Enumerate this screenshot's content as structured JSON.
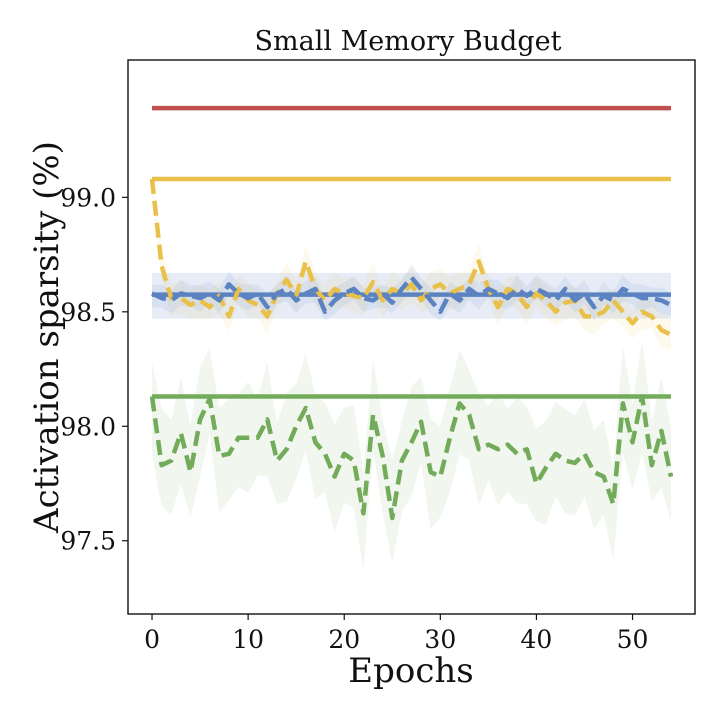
{
  "chart_data": {
    "type": "line",
    "title": "Small Memory Budget",
    "xlabel": "Epochs",
    "ylabel": "Activation sparsity (%)",
    "xlim": [
      -2.5,
      56.5
    ],
    "ylim": [
      97.18,
      99.6
    ],
    "xticks": [
      0,
      10,
      20,
      30,
      40,
      50
    ],
    "yticks": [
      97.5,
      98.0,
      98.5,
      99.0
    ],
    "ytick_labels": [
      "97.5",
      "98.0",
      "98.5",
      "99.0"
    ],
    "grid": false,
    "x": [
      0,
      1,
      2,
      3,
      4,
      5,
      6,
      7,
      8,
      9,
      10,
      11,
      12,
      13,
      14,
      15,
      16,
      17,
      18,
      19,
      20,
      21,
      22,
      23,
      24,
      25,
      26,
      27,
      28,
      29,
      30,
      31,
      32,
      33,
      34,
      35,
      36,
      37,
      38,
      39,
      40,
      41,
      42,
      43,
      44,
      45,
      46,
      47,
      48,
      49,
      50,
      51,
      52,
      53,
      54
    ],
    "series": [
      {
        "name": "red-constant",
        "color": "#c0504d",
        "style": "solid",
        "values_const": 99.39,
        "x_range": [
          0,
          54
        ]
      },
      {
        "name": "yellow-constant",
        "color": "#e8c04a",
        "style": "solid",
        "values_const": 99.08,
        "x_range": [
          0,
          54
        ]
      },
      {
        "name": "blue-constant",
        "color": "#5b82c1",
        "style": "solid",
        "values_const": 98.575,
        "band": [
          98.47,
          98.67
        ],
        "x_range": [
          0,
          54
        ]
      },
      {
        "name": "green-constant",
        "color": "#72ab5a",
        "style": "solid",
        "values_const": 98.13,
        "x_range": [
          0,
          54
        ]
      },
      {
        "name": "yellow-dashed",
        "color": "#e8c04a",
        "style": "dashed",
        "values": [
          99.08,
          98.7,
          98.56,
          98.56,
          98.53,
          98.55,
          98.52,
          98.57,
          98.48,
          98.6,
          98.55,
          98.53,
          98.48,
          98.58,
          98.64,
          98.57,
          98.72,
          98.6,
          98.55,
          98.6,
          98.58,
          98.57,
          98.56,
          98.63,
          98.55,
          98.6,
          98.58,
          98.62,
          98.55,
          98.6,
          98.62,
          98.58,
          98.6,
          98.62,
          98.72,
          98.6,
          98.52,
          98.6,
          98.58,
          98.52,
          98.58,
          98.55,
          98.5,
          98.54,
          98.55,
          98.48,
          98.48,
          98.5,
          98.55,
          98.5,
          98.45,
          98.5,
          98.48,
          98.42,
          98.4
        ],
        "band_width": 0.08
      },
      {
        "name": "blue-dashed",
        "color": "#5b82c1",
        "style": "dashed",
        "values": [
          98.58,
          98.56,
          98.55,
          98.58,
          98.57,
          98.56,
          98.58,
          98.55,
          98.62,
          98.58,
          98.56,
          98.58,
          98.52,
          98.58,
          98.6,
          98.55,
          98.58,
          98.6,
          98.5,
          98.55,
          98.58,
          98.6,
          98.56,
          98.55,
          98.58,
          98.54,
          98.6,
          98.65,
          98.6,
          98.55,
          98.5,
          98.58,
          98.55,
          98.6,
          98.57,
          98.6,
          98.58,
          98.56,
          98.6,
          98.57,
          98.6,
          98.58,
          98.55,
          98.6,
          98.55,
          98.58,
          98.52,
          98.57,
          98.55,
          98.6,
          98.58,
          98.56,
          98.56,
          98.55,
          98.53
        ],
        "band_width": 0.06
      },
      {
        "name": "green-dashed",
        "color": "#72ab5a",
        "style": "dashed",
        "values": [
          98.13,
          97.83,
          97.85,
          97.97,
          97.8,
          98.03,
          98.12,
          97.87,
          97.88,
          97.95,
          97.95,
          97.95,
          98.03,
          97.85,
          97.9,
          98.0,
          98.08,
          97.93,
          97.88,
          97.78,
          97.88,
          97.85,
          97.62,
          98.05,
          97.87,
          97.6,
          97.85,
          97.93,
          98.02,
          97.8,
          97.78,
          97.95,
          98.1,
          98.05,
          97.9,
          97.92,
          97.9,
          97.92,
          97.88,
          97.9,
          97.75,
          97.82,
          97.88,
          97.85,
          97.84,
          97.88,
          97.8,
          97.78,
          97.66,
          98.1,
          97.93,
          98.13,
          97.83,
          97.98,
          97.78
        ],
        "band_width": 0.25
      }
    ]
  }
}
